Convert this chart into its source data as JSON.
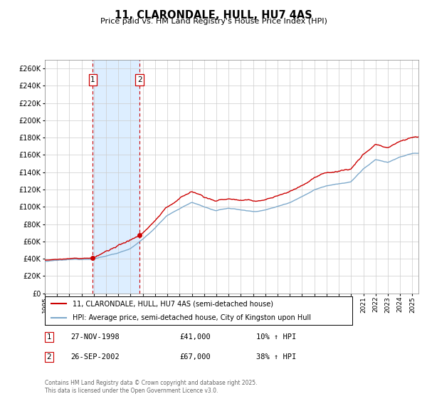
{
  "title": "11, CLARONDALE, HULL, HU7 4AS",
  "subtitle": "Price paid vs. HM Land Registry's House Price Index (HPI)",
  "legend_line1": "11, CLARONDALE, HULL, HU7 4AS (semi-detached house)",
  "legend_line2": "HPI: Average price, semi-detached house, City of Kingston upon Hull",
  "footnote": "Contains HM Land Registry data © Crown copyright and database right 2025.\nThis data is licensed under the Open Government Licence v3.0.",
  "transaction1_date": "27-NOV-1998",
  "transaction1_price": "£41,000",
  "transaction1_hpi": "10% ↑ HPI",
  "transaction2_date": "26-SEP-2002",
  "transaction2_price": "£67,000",
  "transaction2_hpi": "38% ↑ HPI",
  "property_color": "#cc0000",
  "hpi_color": "#7faacc",
  "background_color": "#ffffff",
  "grid_color": "#cccccc",
  "highlight_color": "#ddeeff",
  "ylim": [
    0,
    270000
  ],
  "ytick_values": [
    0,
    20000,
    40000,
    60000,
    80000,
    100000,
    120000,
    140000,
    160000,
    180000,
    200000,
    220000,
    240000,
    260000
  ],
  "xstart": 1995,
  "xend": 2025
}
